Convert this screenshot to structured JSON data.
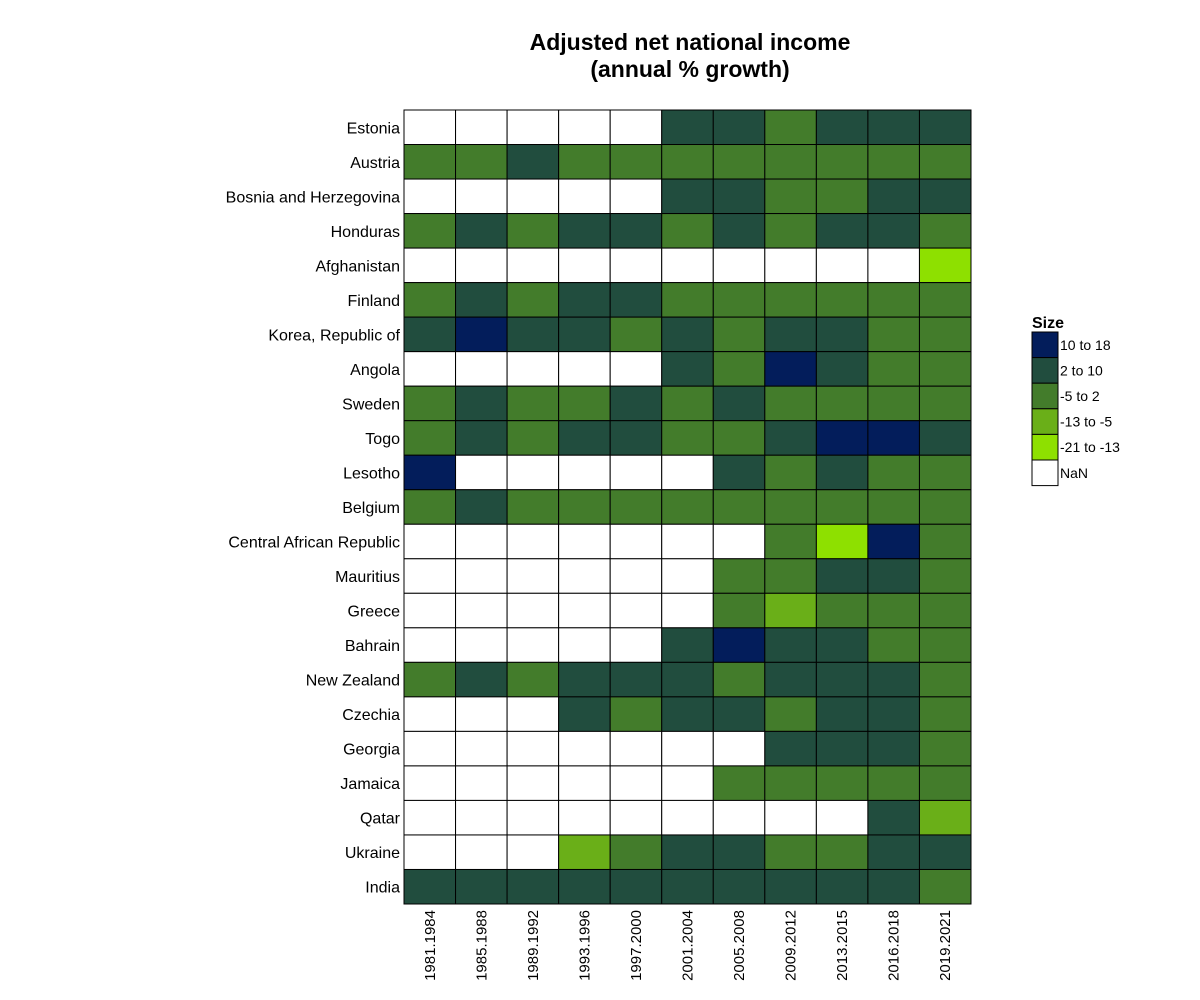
{
  "chart_data": {
    "type": "heatmap",
    "title": [
      "Adjusted net national income",
      "(annual % growth)"
    ],
    "xlabel": "",
    "ylabel": "",
    "grid": false,
    "legend_position": "right",
    "x": [
      "1981.1984",
      "1985.1988",
      "1989.1992",
      "1993.1996",
      "1997.2000",
      "2001.2004",
      "2005.2008",
      "2009.2012",
      "2013.2015",
      "2016.2018",
      "2019.2021"
    ],
    "y": [
      "Estonia",
      "Austria",
      "Bosnia and Herzegovina",
      "Honduras",
      "Afghanistan",
      "Finland",
      "Korea, Republic of",
      "Angola",
      "Sweden",
      "Togo",
      "Lesotho",
      "Belgium",
      "Central African Republic",
      "Mauritius",
      "Greece",
      "Bahrain",
      "New Zealand",
      "Czechia",
      "Georgia",
      "Jamaica",
      "Qatar",
      "Ukraine",
      "India"
    ],
    "legend": {
      "title": "Size",
      "bins": [
        {
          "label": "10 to 18",
          "color": "#031d5b"
        },
        {
          "label": "2 to 10",
          "color": "#214d3e"
        },
        {
          "label": "-5 to 2",
          "color": "#437c2b"
        },
        {
          "label": "-13 to -5",
          "color": "#6aaf18"
        },
        {
          "label": "-21 to -13",
          "color": "#8ee000"
        },
        {
          "label": "NaN",
          "color": "#ffffff"
        }
      ]
    },
    "cells": [
      [
        "NaN",
        "NaN",
        "NaN",
        "NaN",
        "NaN",
        "2 to 10",
        "2 to 10",
        "-5 to 2",
        "2 to 10",
        "2 to 10",
        "2 to 10"
      ],
      [
        "-5 to 2",
        "-5 to 2",
        "2 to 10",
        "-5 to 2",
        "-5 to 2",
        "-5 to 2",
        "-5 to 2",
        "-5 to 2",
        "-5 to 2",
        "-5 to 2",
        "-5 to 2"
      ],
      [
        "NaN",
        "NaN",
        "NaN",
        "NaN",
        "NaN",
        "2 to 10",
        "2 to 10",
        "-5 to 2",
        "-5 to 2",
        "2 to 10",
        "2 to 10"
      ],
      [
        "-5 to 2",
        "2 to 10",
        "-5 to 2",
        "2 to 10",
        "2 to 10",
        "-5 to 2",
        "2 to 10",
        "-5 to 2",
        "2 to 10",
        "2 to 10",
        "-5 to 2"
      ],
      [
        "NaN",
        "NaN",
        "NaN",
        "NaN",
        "NaN",
        "NaN",
        "NaN",
        "NaN",
        "NaN",
        "NaN",
        "-21 to -13"
      ],
      [
        "-5 to 2",
        "2 to 10",
        "-5 to 2",
        "2 to 10",
        "2 to 10",
        "-5 to 2",
        "-5 to 2",
        "-5 to 2",
        "-5 to 2",
        "-5 to 2",
        "-5 to 2"
      ],
      [
        "2 to 10",
        "10 to 18",
        "2 to 10",
        "2 to 10",
        "-5 to 2",
        "2 to 10",
        "-5 to 2",
        "2 to 10",
        "2 to 10",
        "-5 to 2",
        "-5 to 2"
      ],
      [
        "NaN",
        "NaN",
        "NaN",
        "NaN",
        "NaN",
        "2 to 10",
        "-5 to 2",
        "10 to 18",
        "2 to 10",
        "-5 to 2",
        "-5 to 2"
      ],
      [
        "-5 to 2",
        "2 to 10",
        "-5 to 2",
        "-5 to 2",
        "2 to 10",
        "-5 to 2",
        "2 to 10",
        "-5 to 2",
        "-5 to 2",
        "-5 to 2",
        "-5 to 2"
      ],
      [
        "-5 to 2",
        "2 to 10",
        "-5 to 2",
        "2 to 10",
        "2 to 10",
        "-5 to 2",
        "-5 to 2",
        "2 to 10",
        "10 to 18",
        "10 to 18",
        "2 to 10"
      ],
      [
        "10 to 18",
        "NaN",
        "NaN",
        "NaN",
        "NaN",
        "NaN",
        "2 to 10",
        "-5 to 2",
        "2 to 10",
        "-5 to 2",
        "-5 to 2"
      ],
      [
        "-5 to 2",
        "2 to 10",
        "-5 to 2",
        "-5 to 2",
        "-5 to 2",
        "-5 to 2",
        "-5 to 2",
        "-5 to 2",
        "-5 to 2",
        "-5 to 2",
        "-5 to 2"
      ],
      [
        "NaN",
        "NaN",
        "NaN",
        "NaN",
        "NaN",
        "NaN",
        "NaN",
        "-5 to 2",
        "-21 to -13",
        "10 to 18",
        "-5 to 2"
      ],
      [
        "NaN",
        "NaN",
        "NaN",
        "NaN",
        "NaN",
        "NaN",
        "-5 to 2",
        "-5 to 2",
        "2 to 10",
        "2 to 10",
        "-5 to 2"
      ],
      [
        "NaN",
        "NaN",
        "NaN",
        "NaN",
        "NaN",
        "NaN",
        "-5 to 2",
        "-13 to -5",
        "-5 to 2",
        "-5 to 2",
        "-5 to 2"
      ],
      [
        "NaN",
        "NaN",
        "NaN",
        "NaN",
        "NaN",
        "2 to 10",
        "10 to 18",
        "2 to 10",
        "2 to 10",
        "-5 to 2",
        "-5 to 2"
      ],
      [
        "-5 to 2",
        "2 to 10",
        "-5 to 2",
        "2 to 10",
        "2 to 10",
        "2 to 10",
        "-5 to 2",
        "2 to 10",
        "2 to 10",
        "2 to 10",
        "-5 to 2"
      ],
      [
        "NaN",
        "NaN",
        "NaN",
        "2 to 10",
        "-5 to 2",
        "2 to 10",
        "2 to 10",
        "-5 to 2",
        "2 to 10",
        "2 to 10",
        "-5 to 2"
      ],
      [
        "NaN",
        "NaN",
        "NaN",
        "NaN",
        "NaN",
        "NaN",
        "NaN",
        "2 to 10",
        "2 to 10",
        "2 to 10",
        "-5 to 2"
      ],
      [
        "NaN",
        "NaN",
        "NaN",
        "NaN",
        "NaN",
        "NaN",
        "-5 to 2",
        "-5 to 2",
        "-5 to 2",
        "-5 to 2",
        "-5 to 2"
      ],
      [
        "NaN",
        "NaN",
        "NaN",
        "NaN",
        "NaN",
        "NaN",
        "NaN",
        "NaN",
        "NaN",
        "2 to 10",
        "-13 to -5"
      ],
      [
        "NaN",
        "NaN",
        "NaN",
        "-13 to -5",
        "-5 to 2",
        "2 to 10",
        "2 to 10",
        "-5 to 2",
        "-5 to 2",
        "2 to 10",
        "2 to 10"
      ],
      [
        "2 to 10",
        "2 to 10",
        "2 to 10",
        "2 to 10",
        "2 to 10",
        "2 to 10",
        "2 to 10",
        "2 to 10",
        "2 to 10",
        "2 to 10",
        "-5 to 2"
      ]
    ]
  }
}
